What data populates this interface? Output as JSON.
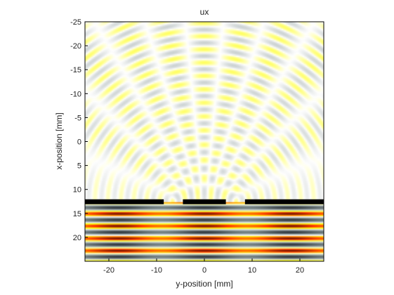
{
  "chart_data": {
    "type": "heatmap",
    "title": "ux",
    "xlabel": "y-position [mm]",
    "ylabel": "x-position [mm]",
    "xlim": [
      -25,
      25
    ],
    "ylim": [
      -25,
      25
    ],
    "y_reversed": true,
    "x_ticks": [
      -20,
      -10,
      0,
      10,
      20
    ],
    "y_ticks": [
      -25,
      -20,
      -15,
      -10,
      -5,
      0,
      5,
      10,
      15,
      20
    ],
    "x_tick_labels": [
      "-20",
      "-10",
      "0",
      "10",
      "20"
    ],
    "y_tick_labels": [
      "-25",
      "-20",
      "-15",
      "-10",
      "-5",
      "0",
      "5",
      "10",
      "15",
      "20"
    ],
    "colormap": "grey-blue / white / yellow-red-black (diverging)",
    "barrier": {
      "x_position": 12.5,
      "slits_y_center": [
        -6.5,
        6.5
      ],
      "slit_width": 4,
      "color": "#000000"
    },
    "grid": false
  }
}
